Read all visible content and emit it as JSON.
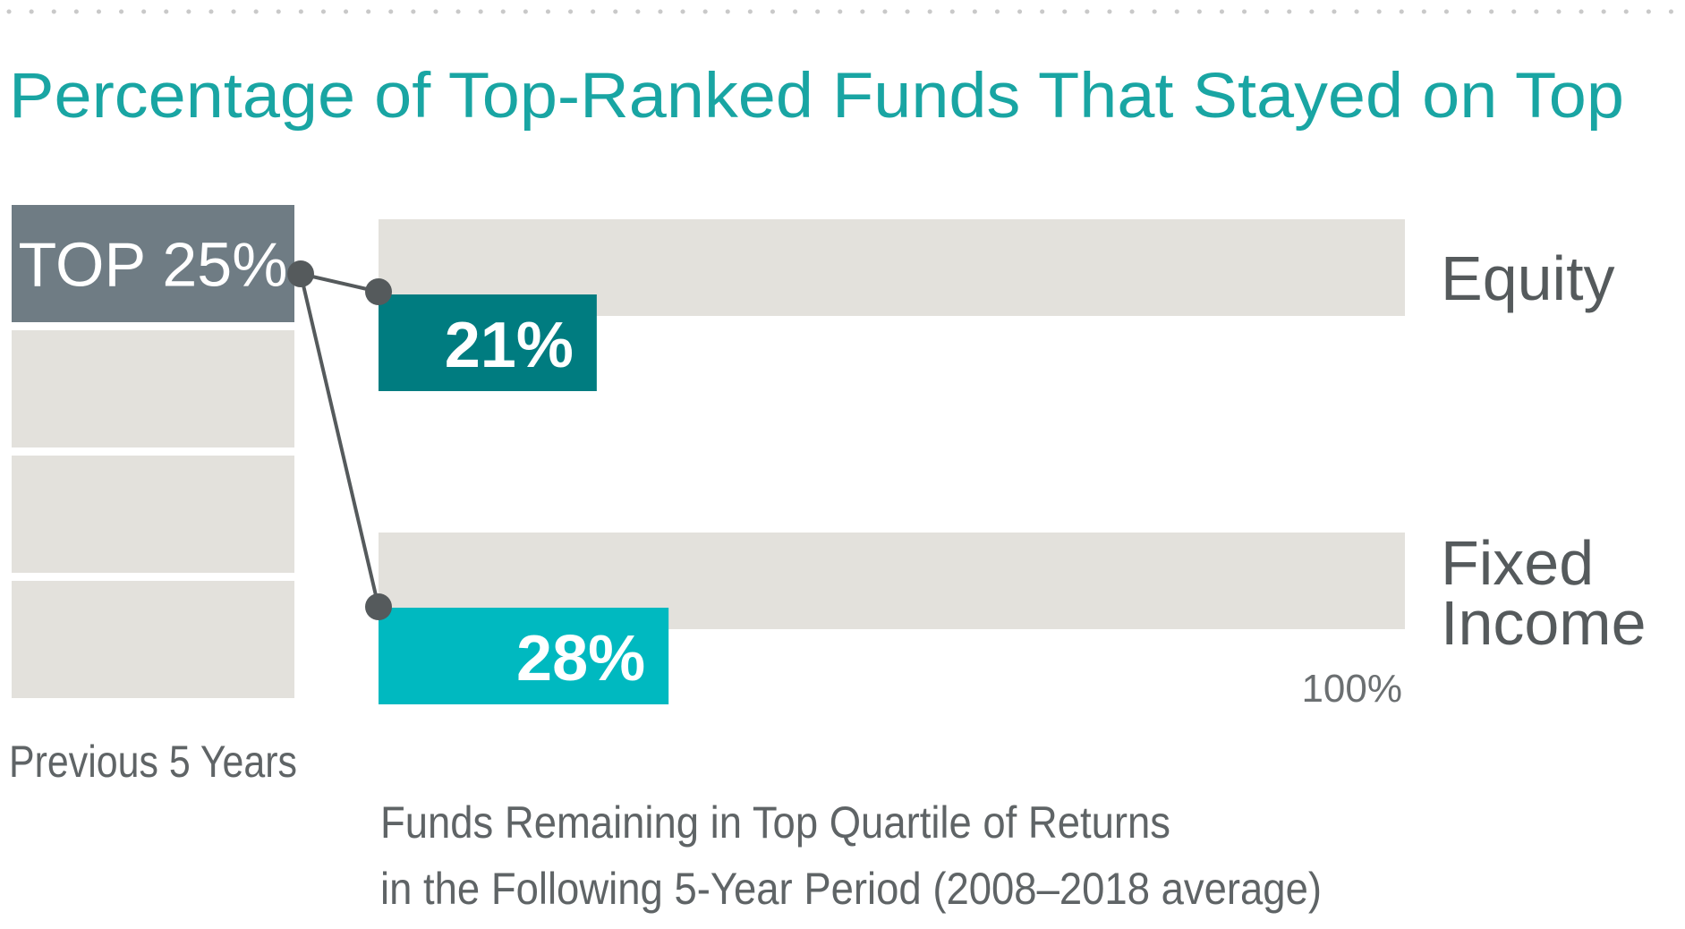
{
  "title": "Percentage of Top-Ranked Funds That Stayed on Top",
  "left_panel": {
    "top_label": "TOP 25%",
    "caption": "Previous 5 Years"
  },
  "axis_max_label": "100%",
  "caption": {
    "line1": "Funds Remaining in Top Quartile of Returns",
    "line2": "in the Following 5-Year Period (2008–2018 average)"
  },
  "colors": {
    "title": "#19a5a3",
    "track": "#e3e1dc",
    "quartile_top": "#6f7c84",
    "quartile_other": "#e3e1dc",
    "equity": "#007c80",
    "fixed_income": "#00b9c0",
    "connector": "#555a5c"
  },
  "chart_data": {
    "type": "bar",
    "orientation": "horizontal",
    "categories": [
      "Equity",
      "Fixed Income"
    ],
    "category_lines": [
      [
        "Equity"
      ],
      [
        "Fixed",
        "Income"
      ]
    ],
    "values": [
      21,
      28
    ],
    "value_labels": [
      "21%",
      "28%"
    ],
    "xlim": [
      0,
      100
    ],
    "quartiles": [
      "TOP 25%",
      "",
      "",
      ""
    ],
    "title": "Percentage of Top-Ranked Funds That Stayed on Top",
    "xlabel": "Funds Remaining in Top Quartile of Returns in the Following 5-Year Period (2008–2018 average)",
    "grid": false,
    "legend": "none"
  }
}
